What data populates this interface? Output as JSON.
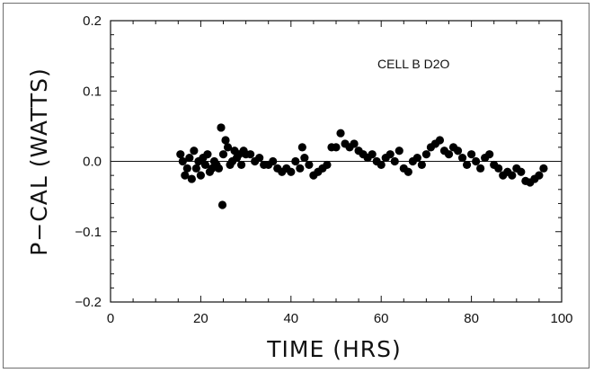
{
  "chart_data": {
    "type": "scatter",
    "title": "",
    "xlabel": "TIME  (HRS)",
    "ylabel": "P−CAL  (WATTS)",
    "annotation": "CELL B    D2O",
    "xlim": [
      0,
      100
    ],
    "ylim": [
      -0.2,
      0.2
    ],
    "x_ticks": [
      "0",
      "20",
      "40",
      "60",
      "80",
      "100"
    ],
    "y_ticks": [
      "0.2",
      "0.1",
      "0.0",
      "−0.1",
      "−0.2"
    ],
    "zero_line": true,
    "grid": false,
    "marker_color": "#000000",
    "series": [
      {
        "x": [
          15.5,
          16.0,
          16.5,
          17.0,
          17.5,
          18.0,
          18.5,
          19.0,
          19.5,
          20.0,
          20.5,
          21.0,
          21.5,
          22.0,
          22.5,
          23.0,
          23.5,
          24.0,
          24.5,
          24.8,
          25.0,
          25.5,
          26.0,
          26.5,
          27.0,
          27.5,
          28.0,
          28.5,
          29.0,
          29.5,
          30.0,
          31.0,
          32.0,
          33.0,
          34.0,
          35.0,
          36.0,
          37.0,
          38.0,
          39.0,
          40.0,
          41.0,
          42.0,
          42.5,
          43.0,
          44.0,
          45.0,
          46.0,
          47.0,
          48.0,
          49.0,
          50.0,
          51.0,
          52.0,
          53.0,
          54.0,
          55.0,
          56.0,
          57.0,
          58.0,
          59.0,
          60.0,
          61.0,
          62.0,
          63.0,
          64.0,
          65.0,
          66.0,
          67.0,
          68.0,
          69.0,
          70.0,
          71.0,
          72.0,
          73.0,
          74.0,
          75.0,
          76.0,
          77.0,
          78.0,
          79.0,
          80.0,
          81.0,
          82.0,
          83.0,
          84.0,
          85.0,
          86.0,
          87.0,
          88.0,
          89.0,
          90.0,
          91.0,
          92.0,
          93.0,
          94.0,
          95.0,
          96.0
        ],
        "y": [
          0.01,
          0.0,
          -0.02,
          -0.01,
          0.005,
          -0.025,
          0.015,
          -0.01,
          0.0,
          -0.02,
          0.005,
          -0.005,
          0.01,
          -0.015,
          -0.01,
          0.0,
          -0.005,
          -0.01,
          0.048,
          -0.062,
          0.01,
          0.03,
          0.02,
          -0.005,
          0.0,
          0.015,
          0.005,
          0.01,
          -0.005,
          0.015,
          0.01,
          0.01,
          0.0,
          0.005,
          -0.005,
          -0.005,
          0.0,
          -0.01,
          -0.015,
          -0.01,
          -0.015,
          0.0,
          -0.01,
          0.02,
          0.005,
          -0.005,
          -0.02,
          -0.015,
          -0.01,
          -0.005,
          0.02,
          0.02,
          0.04,
          0.025,
          0.02,
          0.025,
          0.015,
          0.01,
          0.005,
          0.01,
          0.0,
          -0.005,
          0.005,
          0.01,
          0.0,
          0.015,
          -0.01,
          -0.015,
          0.0,
          0.005,
          -0.005,
          0.01,
          0.02,
          0.025,
          0.03,
          0.015,
          0.01,
          0.02,
          0.015,
          0.005,
          -0.005,
          0.01,
          0.0,
          -0.01,
          0.005,
          0.01,
          -0.005,
          -0.01,
          -0.02,
          -0.015,
          -0.02,
          -0.01,
          -0.015,
          -0.028,
          -0.03,
          -0.025,
          -0.02,
          -0.01
        ]
      }
    ]
  }
}
